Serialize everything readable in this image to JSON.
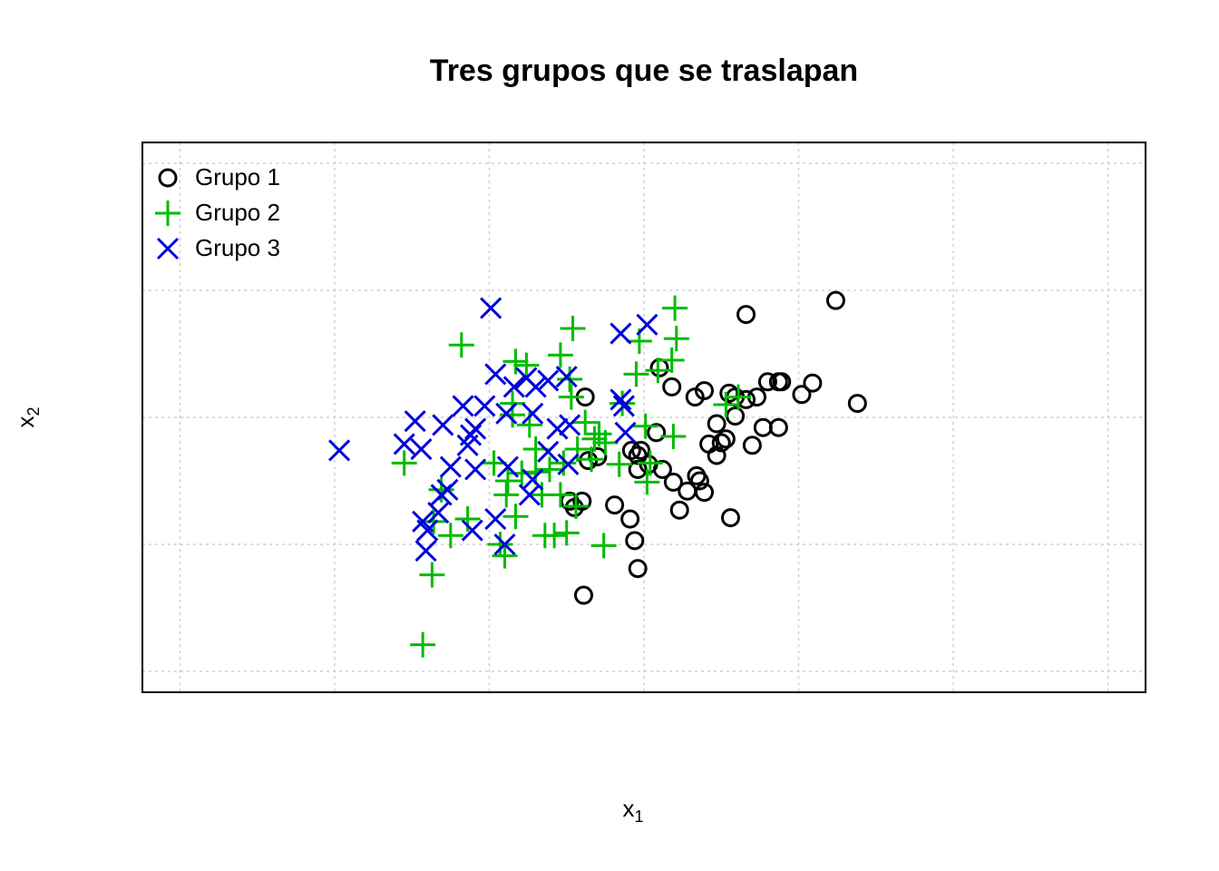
{
  "chart_data": {
    "type": "scatter",
    "title": "Tres grupos que se traslapan",
    "xlabel": {
      "main": "x",
      "sub": "1"
    },
    "ylabel": {
      "main": "x",
      "sub": "2"
    },
    "xlim": [
      -3.243,
      3.243
    ],
    "ylim": [
      -2.164,
      2.164
    ],
    "xticks": [
      -3,
      -2,
      -1,
      0,
      1,
      2,
      3
    ],
    "yticks": [
      -2,
      -1,
      0,
      1,
      2
    ],
    "tick_labels": false,
    "grid": true,
    "legend": "top-left",
    "series": [
      {
        "name": "Grupo 1",
        "color": "#000000",
        "marker": "circle",
        "x": [
          1.24,
          0.66,
          1.38,
          1.09,
          1.02,
          0.89,
          0.87,
          0.8,
          0.73,
          0.66,
          0.59,
          0.55,
          0.39,
          0.33,
          0.18,
          0.1,
          -0.38,
          0.59,
          0.47,
          0.77,
          0.87,
          0.7,
          0.53,
          0.5,
          0.42,
          0.47,
          0.08,
          -0.02,
          -0.08,
          -0.04,
          -0.04,
          0.03,
          0.12,
          0.34,
          0.36,
          0.19,
          0.28,
          0.39,
          0.23,
          0.56,
          -0.19,
          -0.09,
          -0.06,
          -0.04,
          -0.39,
          -0.48,
          -0.4,
          -0.45,
          -0.3,
          -0.36
        ],
        "y": [
          0.92,
          0.81,
          0.11,
          0.27,
          0.18,
          0.28,
          0.28,
          0.28,
          0.16,
          0.14,
          0.16,
          0.19,
          0.21,
          0.16,
          0.24,
          0.39,
          0.16,
          0.01,
          -0.05,
          -0.08,
          -0.08,
          -0.22,
          -0.17,
          -0.2,
          -0.21,
          -0.3,
          -0.12,
          -0.26,
          -0.26,
          -0.3,
          -0.41,
          -0.37,
          -0.41,
          -0.46,
          -0.5,
          -0.51,
          -0.58,
          -0.59,
          -0.73,
          -0.79,
          -0.69,
          -0.8,
          -0.97,
          -1.19,
          -1.4,
          -0.66,
          -0.66,
          -0.71,
          -0.31,
          -0.34
        ]
      },
      {
        "name": "Grupo 2",
        "color": "#00bb00",
        "marker": "plus",
        "x": [
          0.2,
          -0.46,
          -1.18,
          0.21,
          -0.03,
          -0.54,
          -0.83,
          -0.76,
          0.18,
          0.09,
          -0.05,
          -0.48,
          -0.47,
          -0.14,
          0.53,
          0.61,
          -0.85,
          -0.38,
          0.01,
          0.19,
          -0.32,
          -0.25,
          -0.43,
          -0.52,
          -1.55,
          -0.97,
          -0.88,
          -0.79,
          -0.7,
          -0.61,
          -0.34,
          -0.16,
          0.04,
          0.02,
          -1.31,
          -0.89,
          -0.66,
          -0.54,
          -0.44,
          -0.83,
          -1.14,
          -1.36,
          -1.25,
          -0.93,
          -0.64,
          -0.5,
          -0.58,
          -0.26,
          -0.9,
          -1.37,
          -1.43,
          -0.74,
          -0.7,
          -0.29,
          -0.85
        ],
        "y": [
          0.86,
          0.7,
          0.57,
          0.62,
          0.6,
          0.49,
          0.44,
          0.41,
          0.45,
          0.37,
          0.34,
          0.3,
          0.16,
          0.11,
          0.1,
          0.16,
          0.02,
          -0.04,
          -0.07,
          -0.15,
          -0.17,
          -0.2,
          -0.25,
          -0.36,
          -0.36,
          -0.36,
          -0.5,
          -0.44,
          -0.43,
          -0.41,
          -0.33,
          -0.37,
          -0.36,
          -0.51,
          -0.57,
          -0.61,
          -0.61,
          -0.61,
          -0.7,
          -0.78,
          -0.8,
          -0.82,
          -0.93,
          -1.0,
          -0.93,
          -0.91,
          -0.93,
          -1.01,
          -1.09,
          -1.24,
          -1.79,
          -0.06,
          -0.25,
          -0.13,
          0.11
        ]
      },
      {
        "name": "Grupo 3",
        "color": "#0000dd",
        "marker": "cross",
        "x": [
          -0.99,
          -0.15,
          0.02,
          -0.96,
          -0.76,
          -0.62,
          -0.5,
          -0.84,
          -0.7,
          -1.17,
          -1.03,
          -0.89,
          -0.72,
          -0.15,
          -0.13,
          -1.48,
          -1.3,
          -1.09,
          -1.12,
          -0.56,
          -0.48,
          -1.14,
          -0.12,
          -1.55,
          -1.44,
          -1.97,
          -0.62,
          -0.88,
          -0.49,
          -1.25,
          -1.09,
          -0.72,
          -1.31,
          -1.27,
          -0.74,
          -1.43,
          -1.33,
          -1.4,
          -1.11,
          -1.41,
          -0.9,
          -0.96
        ],
        "y": [
          0.86,
          0.66,
          0.73,
          0.34,
          0.31,
          0.29,
          0.32,
          0.24,
          0.24,
          0.09,
          0.09,
          0.03,
          0.03,
          0.14,
          0.09,
          -0.03,
          -0.06,
          -0.09,
          -0.14,
          -0.09,
          -0.06,
          -0.22,
          -0.12,
          -0.21,
          -0.25,
          -0.26,
          -0.27,
          -0.39,
          -0.37,
          -0.39,
          -0.41,
          -0.49,
          -0.61,
          -0.57,
          -0.61,
          -0.82,
          -0.75,
          -0.89,
          -0.89,
          -1.05,
          -1.0,
          -0.8
        ]
      }
    ]
  }
}
